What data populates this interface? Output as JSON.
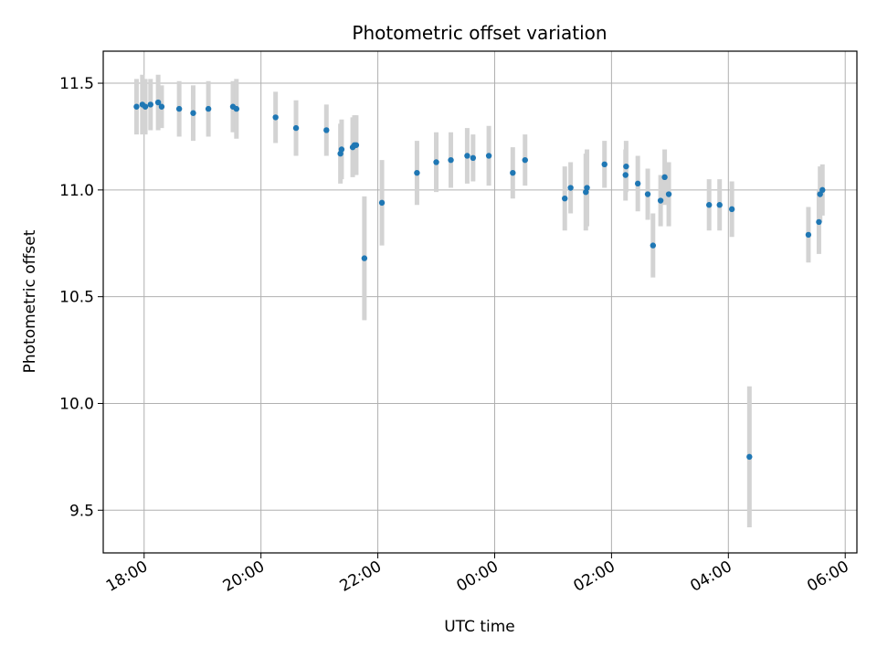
{
  "chart_data": {
    "type": "scatter",
    "title": "Photometric offset variation",
    "xlabel": "UTC time",
    "ylabel": "Photometric offset",
    "x_tick_labels": [
      "18:00",
      "20:00",
      "22:00",
      "00:00",
      "02:00",
      "04:00",
      "06:00"
    ],
    "x_tick_hours": [
      18,
      20,
      22,
      24,
      26,
      28,
      30
    ],
    "y_ticks": [
      9.5,
      10.0,
      10.5,
      11.0,
      11.5
    ],
    "y_tick_labels": [
      "9.5",
      "10.0",
      "10.5",
      "11.0",
      "11.5"
    ],
    "xlim_hours": [
      17.3,
      30.2
    ],
    "ylim": [
      9.3,
      11.65
    ],
    "grid": true,
    "point_color": "#1f77b4",
    "errorbar_color": "#d3d3d3",
    "series": [
      {
        "x_hours": [
          17.87,
          17.97,
          18.02,
          18.11,
          18.24,
          18.3,
          18.6,
          18.84,
          19.1,
          19.52,
          19.58,
          20.25,
          20.6,
          21.12,
          21.36,
          21.38,
          21.57,
          21.6,
          21.63,
          21.77,
          22.07,
          22.67,
          23.0,
          23.25,
          23.53,
          23.63,
          23.9,
          24.31,
          24.52,
          25.2,
          25.3,
          25.56,
          25.58,
          25.88,
          26.24,
          26.25,
          26.45,
          26.62,
          26.71,
          26.84,
          26.91,
          26.98,
          27.67,
          27.85,
          28.06,
          28.36,
          29.37,
          29.55,
          29.57,
          29.61
        ],
        "y": [
          11.39,
          11.4,
          11.39,
          11.4,
          11.41,
          11.39,
          11.38,
          11.36,
          11.38,
          11.39,
          11.38,
          11.34,
          11.29,
          11.28,
          11.17,
          11.19,
          11.2,
          11.21,
          11.21,
          10.68,
          10.94,
          11.08,
          11.13,
          11.14,
          11.16,
          11.15,
          11.16,
          11.08,
          11.14,
          10.96,
          11.01,
          10.99,
          11.01,
          11.12,
          11.07,
          11.11,
          11.03,
          10.98,
          10.74,
          10.95,
          11.06,
          10.98,
          10.93,
          10.93,
          10.91,
          9.75,
          10.79,
          10.85,
          10.98,
          11.0
        ],
        "yerr": [
          0.13,
          0.14,
          0.13,
          0.12,
          0.13,
          0.1,
          0.13,
          0.13,
          0.13,
          0.12,
          0.14,
          0.12,
          0.13,
          0.12,
          0.14,
          0.14,
          0.14,
          0.14,
          0.14,
          0.29,
          0.2,
          0.15,
          0.14,
          0.13,
          0.13,
          0.11,
          0.14,
          0.12,
          0.12,
          0.15,
          0.12,
          0.18,
          0.18,
          0.11,
          0.12,
          0.12,
          0.13,
          0.12,
          0.15,
          0.12,
          0.13,
          0.15,
          0.12,
          0.12,
          0.13,
          0.33,
          0.13,
          0.15,
          0.13,
          0.12
        ]
      }
    ]
  }
}
